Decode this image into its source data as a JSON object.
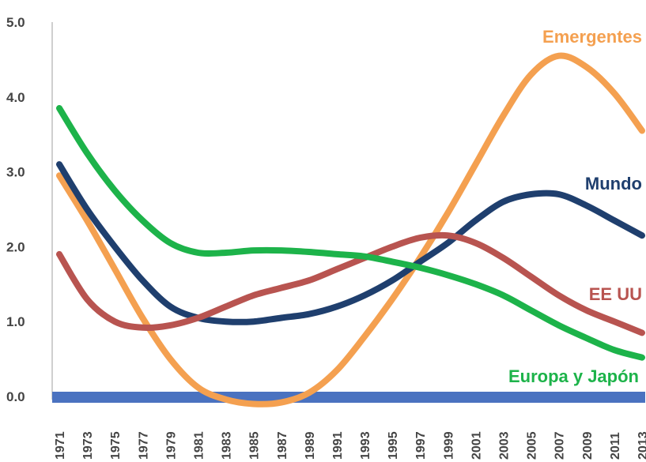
{
  "chart_data": {
    "type": "line",
    "title": "",
    "xlabel": "",
    "ylabel": "",
    "ylim": [
      0,
      5
    ],
    "yticks": [
      "0.0",
      "1.0",
      "2.0",
      "3.0",
      "4.0",
      "5.0"
    ],
    "categories": [
      "1971",
      "1973",
      "1975",
      "1977",
      "1979",
      "1981",
      "1983",
      "1985",
      "1987",
      "1989",
      "1991",
      "1993",
      "1995",
      "1997",
      "1999",
      "2001",
      "2003",
      "2005",
      "2007",
      "2009",
      "2011",
      "2013"
    ],
    "grid": false,
    "legend": "inline-labels",
    "series": [
      {
        "name": "Emergentes",
        "color": "#F4A050",
        "values": [
          2.95,
          2.35,
          1.7,
          1.05,
          0.5,
          0.12,
          -0.04,
          -0.1,
          -0.08,
          0.05,
          0.35,
          0.8,
          1.3,
          1.85,
          2.45,
          3.1,
          3.75,
          4.3,
          4.55,
          4.4,
          4.05,
          3.55
        ]
      },
      {
        "name": "Mundo",
        "color": "#1F3F6E",
        "values": [
          3.1,
          2.5,
          2.0,
          1.55,
          1.2,
          1.05,
          1.0,
          1.0,
          1.05,
          1.1,
          1.2,
          1.35,
          1.55,
          1.8,
          2.05,
          2.35,
          2.6,
          2.7,
          2.7,
          2.55,
          2.35,
          2.15
        ]
      },
      {
        "name": "EE UU",
        "color": "#B85450",
        "values": [
          1.9,
          1.3,
          1.0,
          0.92,
          0.95,
          1.05,
          1.2,
          1.35,
          1.45,
          1.55,
          1.7,
          1.85,
          2.0,
          2.12,
          2.15,
          2.05,
          1.85,
          1.6,
          1.35,
          1.15,
          1.0,
          0.85
        ]
      },
      {
        "name": "Europa y Japón",
        "color": "#1DB34A",
        "values": [
          3.85,
          3.25,
          2.75,
          2.35,
          2.05,
          1.92,
          1.92,
          1.95,
          1.95,
          1.93,
          1.9,
          1.87,
          1.8,
          1.72,
          1.62,
          1.5,
          1.35,
          1.15,
          0.95,
          0.78,
          0.62,
          0.52
        ]
      }
    ]
  }
}
